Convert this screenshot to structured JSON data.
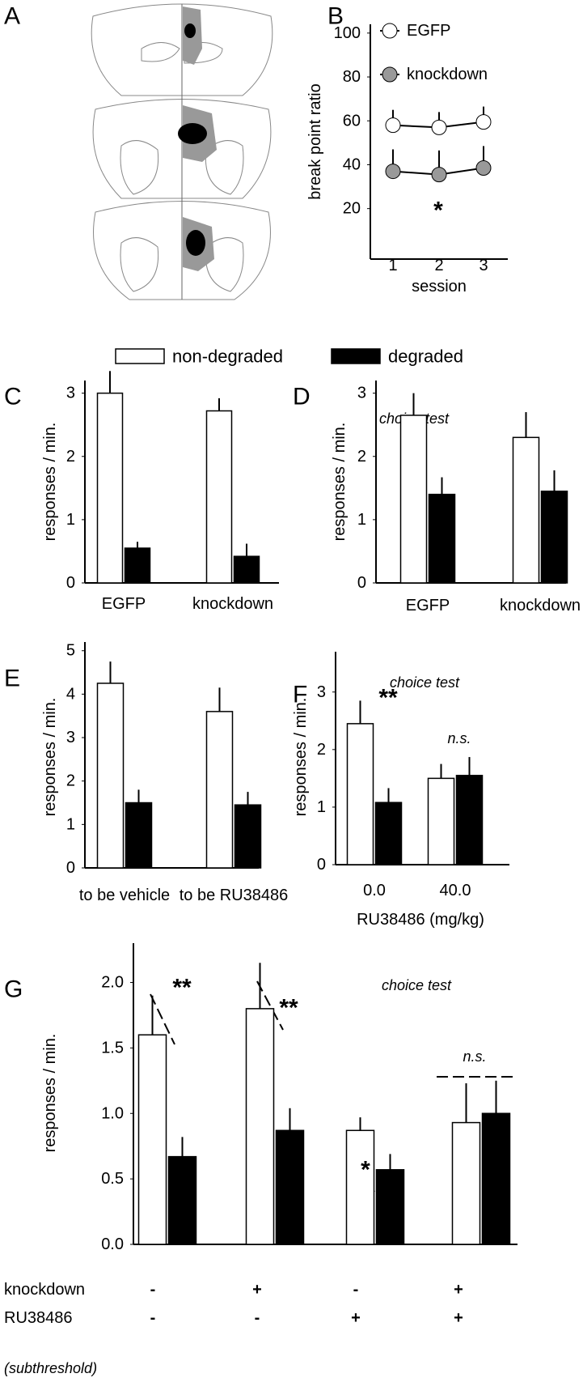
{
  "panel_a": {
    "label": "A"
  },
  "chart_data": [
    {
      "panel": "B",
      "type": "line",
      "ylabel": "break point ratio",
      "xlabel": "session",
      "categories": [
        "1",
        "2",
        "3"
      ],
      "series": [
        {
          "name": "EGFP",
          "color": "#ffffff",
          "values": [
            58,
            57,
            59.5
          ],
          "errors": [
            7,
            7,
            7
          ]
        },
        {
          "name": "knockdown",
          "color": "#999999",
          "values": [
            37,
            35.5,
            38.5
          ],
          "errors": [
            10,
            11,
            10
          ]
        }
      ],
      "ylim": [
        -3,
        104
      ],
      "yticks": [
        20,
        40,
        60,
        80,
        100
      ],
      "annotations": [
        "*"
      ]
    },
    {
      "panel": "C",
      "type": "bar",
      "ylabel": "responses / min.",
      "categories": [
        "EGFP",
        "knockdown"
      ],
      "series": [
        {
          "name": "non-degraded",
          "color": "#ffffff",
          "values": [
            3.0,
            2.72
          ],
          "errors": [
            0.35,
            0.2
          ]
        },
        {
          "name": "degraded",
          "color": "#000000",
          "values": [
            0.55,
            0.42
          ],
          "errors": [
            0.1,
            0.2
          ]
        }
      ],
      "ylim": [
        0,
        3.2
      ],
      "yticks": [
        0,
        1,
        2,
        3
      ]
    },
    {
      "panel": "D",
      "type": "bar",
      "title": "choice test",
      "ylabel": "responses / min.",
      "categories": [
        "EGFP",
        "knockdown"
      ],
      "series": [
        {
          "color": "#ffffff",
          "values": [
            2.65,
            2.3
          ],
          "errors": [
            0.35,
            0.4
          ]
        },
        {
          "color": "#000000",
          "values": [
            1.4,
            1.45
          ],
          "errors": [
            0.27,
            0.33
          ]
        }
      ],
      "ylim": [
        0,
        3.2
      ],
      "yticks": [
        0,
        1,
        2,
        3
      ]
    },
    {
      "panel": "E",
      "type": "bar",
      "ylabel": "responses / min.",
      "categories": [
        "to be vehicle",
        "to be RU38486"
      ],
      "series": [
        {
          "color": "#ffffff",
          "values": [
            4.25,
            3.6
          ],
          "errors": [
            0.5,
            0.55
          ]
        },
        {
          "color": "#000000",
          "values": [
            1.5,
            1.45
          ],
          "errors": [
            0.3,
            0.3
          ]
        }
      ],
      "ylim": [
        0,
        5.2
      ],
      "yticks": [
        0,
        1,
        2,
        3,
        4,
        5
      ]
    },
    {
      "panel": "F",
      "type": "bar",
      "title": "choice test",
      "ylabel": "responses / min.",
      "xlabel": "RU38486 (mg/kg)",
      "categories": [
        "0.0",
        "40.0"
      ],
      "series": [
        {
          "color": "#ffffff",
          "values": [
            2.45,
            1.5
          ],
          "errors": [
            0.4,
            0.25
          ]
        },
        {
          "color": "#000000",
          "values": [
            1.08,
            1.55
          ],
          "errors": [
            0.25,
            0.32
          ]
        }
      ],
      "ylim": [
        0,
        3.7
      ],
      "yticks": [
        0,
        1,
        2,
        3
      ],
      "annotations": [
        "**",
        "n.s."
      ]
    },
    {
      "panel": "G",
      "type": "bar",
      "title": "choice test",
      "ylabel": "responses / min.",
      "categories": [
        null,
        null,
        null,
        null
      ],
      "series": [
        {
          "color": "#ffffff",
          "values": [
            1.6,
            1.8,
            0.87,
            0.93
          ],
          "errors": [
            0.3,
            0.35,
            0.1,
            0.3
          ]
        },
        {
          "color": "#000000",
          "values": [
            0.67,
            0.87,
            0.57,
            1.0
          ],
          "errors": [
            0.15,
            0.17,
            0.12,
            0.25
          ]
        }
      ],
      "ylim": [
        0,
        2.3
      ],
      "yticks": [
        {
          "value": 0,
          "label": "0.0"
        },
        0.5,
        {
          "value": 1,
          "label": "1.0"
        },
        1.5,
        {
          "value": 2,
          "label": "2.0"
        }
      ],
      "annotations": [
        "**",
        "**",
        "*",
        "n.s."
      ],
      "conditions": [
        {
          "label": "knockdown",
          "marks": [
            "-",
            "+",
            "-",
            "+"
          ]
        },
        {
          "label": "RU38486",
          "marks": [
            "-",
            "-",
            "+",
            "+"
          ]
        }
      ],
      "note": "(subthreshold)"
    }
  ]
}
